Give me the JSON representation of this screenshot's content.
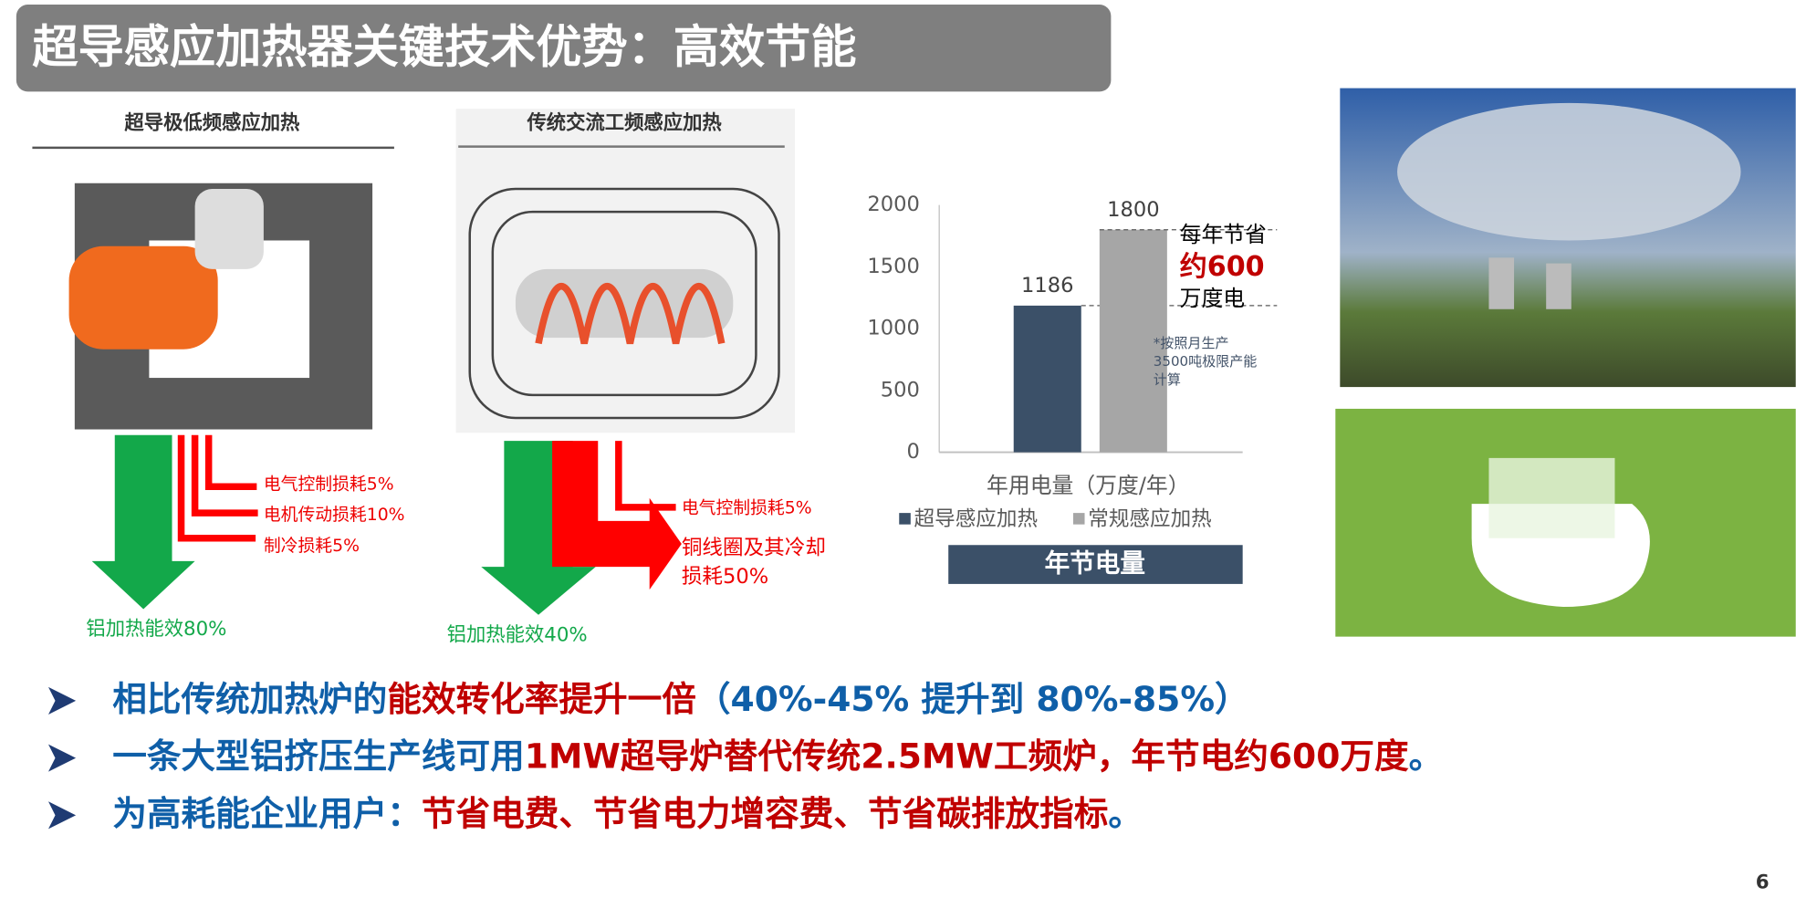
{
  "header": {
    "title": "超导感应加热器关键技术优势：高效节能"
  },
  "diagrams": [
    {
      "title": "超导极低频感应加热",
      "losses": [
        "电气控制损耗5%",
        "电机传动损耗10%",
        "制冷损耗5%"
      ],
      "efficiency": "铝加热能效80%"
    },
    {
      "title": "传统交流工频感应加热",
      "losses": [
        "电气控制损耗5%",
        "铜线圈及其冷却",
        "损耗50%"
      ],
      "efficiency": "铝加热能效40%"
    }
  ],
  "chart_data": {
    "type": "bar",
    "categories": [
      "年用电量（万度/年）"
    ],
    "series": [
      {
        "name": "超导感应加热",
        "color": "#3b5068",
        "values": [
          1186
        ]
      },
      {
        "name": "常规感应加热",
        "color": "#a6a6a6",
        "values": [
          1800
        ]
      }
    ],
    "ylim": [
      0,
      2000
    ],
    "yticks": [
      0,
      500,
      1000,
      1500,
      2000
    ],
    "legend": "bottom",
    "annotations": [
      "每年节省",
      "约600",
      "万度电"
    ],
    "note": [
      "*按照月生产",
      "3500吨极限产能",
      "计算"
    ],
    "banner": "年节电量"
  },
  "bullets": [
    [
      {
        "text": "相比传统加热炉的",
        "color": "#0f5fa8"
      },
      {
        "text": "能效转化率提升一倍",
        "color": "#c00000"
      },
      {
        "text": "（40%-45% 提升到 80%-85%）",
        "color": "#0f5fa8"
      }
    ],
    [
      {
        "text": "一条大型铝挤压生产线可用",
        "color": "#0f5fa8"
      },
      {
        "text": "1MW超导炉替代传统2.5MW工频炉，年节电约600万度",
        "color": "#c00000"
      },
      {
        "text": "。",
        "color": "#0f5fa8"
      }
    ],
    [
      {
        "text": "为高耗能企业用户：",
        "color": "#0f5fa8"
      },
      {
        "text": "节省电费、节省电力增容费、节省碳排放指标",
        "color": "#c00000"
      },
      {
        "text": "。",
        "color": "#0f5fa8"
      }
    ]
  ],
  "page_number": "6"
}
